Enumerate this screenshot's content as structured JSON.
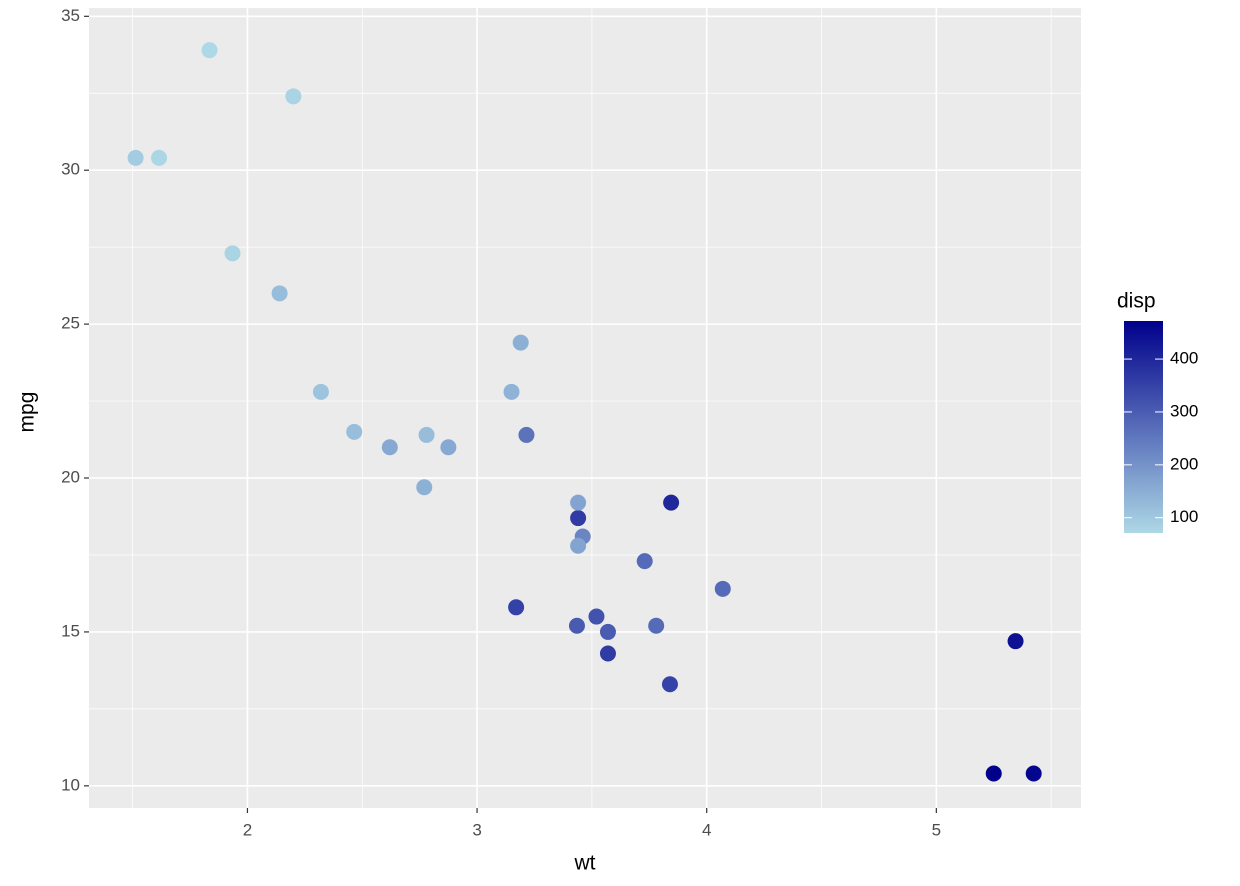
{
  "chart_data": {
    "type": "scatter",
    "x_label": "wt",
    "y_label": "mpg",
    "x": [
      2.62,
      2.875,
      2.32,
      3.215,
      3.44,
      3.46,
      3.57,
      3.19,
      3.15,
      3.44,
      3.44,
      4.07,
      3.73,
      3.78,
      5.25,
      5.424,
      5.345,
      2.2,
      1.615,
      1.835,
      2.465,
      3.52,
      3.435,
      3.84,
      3.845,
      1.935,
      2.14,
      1.513,
      3.17,
      2.77,
      3.57,
      2.78
    ],
    "values": [
      21.0,
      21.0,
      22.8,
      21.4,
      18.7,
      18.1,
      14.3,
      24.4,
      22.8,
      19.2,
      17.8,
      16.4,
      17.3,
      15.2,
      10.4,
      10.4,
      14.7,
      32.4,
      30.4,
      33.9,
      21.5,
      15.5,
      15.2,
      13.3,
      19.2,
      27.3,
      26.0,
      30.4,
      15.8,
      19.7,
      15.0,
      21.4
    ],
    "color_title": "disp",
    "color_values": [
      160,
      160,
      108,
      258,
      360,
      225,
      360,
      146.7,
      140.8,
      167.6,
      167.6,
      275.8,
      275.8,
      275.8,
      472,
      460,
      440,
      78.7,
      75.7,
      71.1,
      120.1,
      318,
      304,
      350,
      400,
      79,
      120.3,
      95.1,
      351,
      145,
      301,
      121
    ],
    "color_low": "#add8e6",
    "color_high": "#00008b",
    "colorlim": [
      71.1,
      472
    ],
    "colorticks": [
      100,
      200,
      300,
      400
    ],
    "xlim": [
      1.31,
      5.63
    ],
    "xticks": [
      2,
      3,
      4,
      5
    ],
    "ylim": [
      9.28,
      35.27
    ],
    "yticks": [
      10,
      15,
      20,
      25,
      30,
      35
    ],
    "grid": true
  }
}
